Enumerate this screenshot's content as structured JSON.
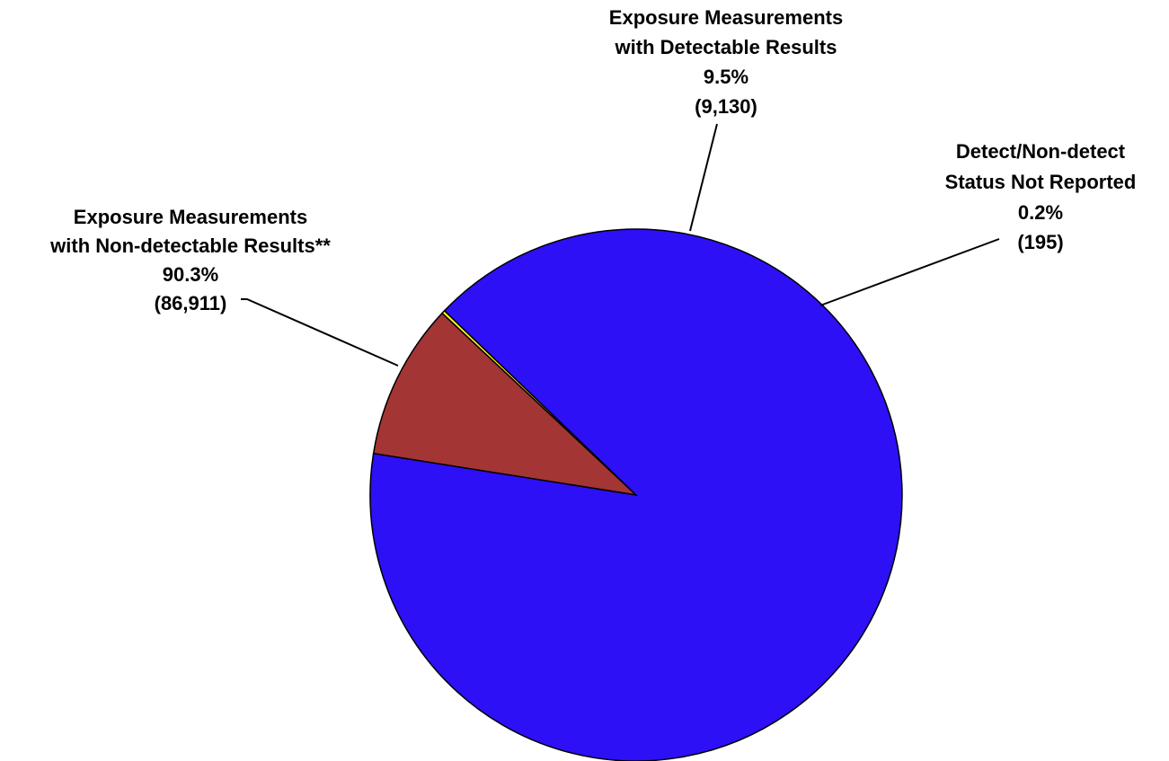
{
  "chart_data": {
    "type": "pie",
    "slices": [
      {
        "label_lines": [
          "Exposure Measurements",
          "with Non-detectable Results**"
        ],
        "percent_label": "90.3%",
        "count_label": "(86,911)",
        "value": 86911,
        "percent": 90.3,
        "color": "#2d10f5"
      },
      {
        "label_lines": [
          "Exposure Measurements",
          "with Detectable Results"
        ],
        "percent_label": "9.5%",
        "count_label": "(9,130)",
        "value": 9130,
        "percent": 9.5,
        "color": "#a33534"
      },
      {
        "label_lines": [
          "Detect/Non-detect",
          "Status Not Reported"
        ],
        "percent_label": "0.2%",
        "count_label": "(195)",
        "value": 195,
        "percent": 0.2,
        "color": "#ffff1a"
      }
    ]
  }
}
